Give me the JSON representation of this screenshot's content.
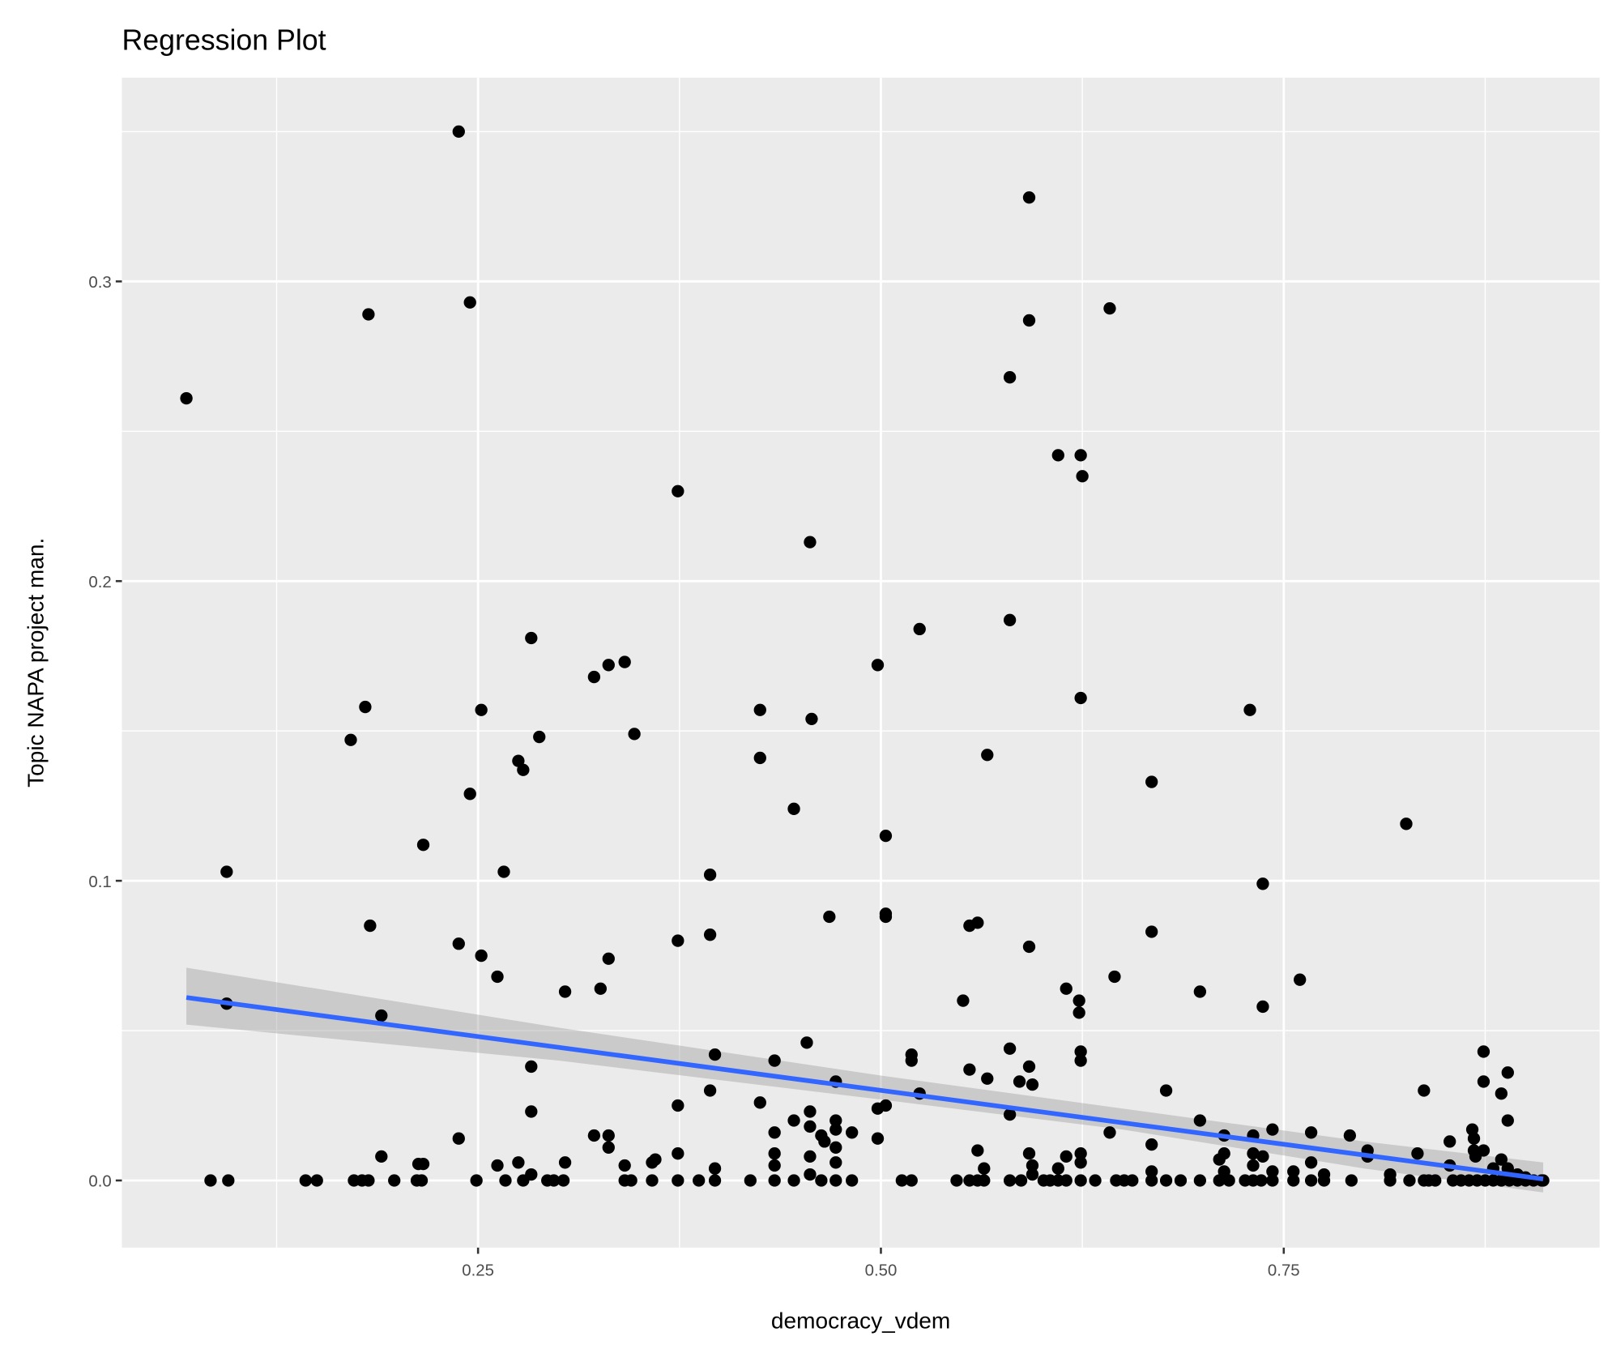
{
  "chart_data": {
    "type": "scatter",
    "title": "Regression Plot",
    "xlabel": "democracy_vdem",
    "ylabel": "Topic NAPA project man.",
    "xlim": [
      0.029,
      0.946
    ],
    "ylim": [
      -0.0224,
      0.368
    ],
    "x_ticks": [
      0.25,
      0.5,
      0.75
    ],
    "x_tick_labels": [
      "0.25",
      "0.50",
      "0.75"
    ],
    "y_ticks": [
      0.0,
      0.1,
      0.2,
      0.3
    ],
    "y_tick_labels": [
      "0.0",
      "0.1",
      "0.2",
      "0.3"
    ],
    "grid": true,
    "legend": "none",
    "colors": {
      "panel": "#ebebeb",
      "grid": "#ffffff",
      "point": "#000000",
      "fit_line": "#3366ff",
      "ci_band": "#999999"
    },
    "regression": {
      "method": "lm",
      "intercept": 0.066,
      "slope": -0.0719,
      "x_range": [
        0.069,
        0.911
      ],
      "ci": [
        {
          "x": 0.069,
          "lo": 0.052,
          "hi": 0.071
        },
        {
          "x": 0.3,
          "lo": 0.04,
          "hi": 0.051
        },
        {
          "x": 0.5,
          "lo": 0.027,
          "hi": 0.035
        },
        {
          "x": 0.65,
          "lo": 0.017,
          "hi": 0.024
        },
        {
          "x": 0.8,
          "lo": 0.004,
          "hi": 0.013
        },
        {
          "x": 0.911,
          "lo": -0.004,
          "hi": 0.006
        }
      ]
    },
    "points": [
      [
        0.069,
        0.261
      ],
      [
        0.084,
        0
      ],
      [
        0.095,
        0
      ],
      [
        0.094,
        0.103
      ],
      [
        0.094,
        0.059
      ],
      [
        0.143,
        0
      ],
      [
        0.15,
        0
      ],
      [
        0.173,
        0
      ],
      [
        0.178,
        0
      ],
      [
        0.182,
        0
      ],
      [
        0.171,
        0.147
      ],
      [
        0.18,
        0.158
      ],
      [
        0.182,
        0.289
      ],
      [
        0.183,
        0.085
      ],
      [
        0.19,
        0.055
      ],
      [
        0.19,
        0.008
      ],
      [
        0.198,
        0
      ],
      [
        0.212,
        0
      ],
      [
        0.215,
        0
      ],
      [
        0.213,
        0.0055
      ],
      [
        0.216,
        0.0055
      ],
      [
        0.216,
        0.112
      ],
      [
        0.238,
        0.35
      ],
      [
        0.238,
        0.079
      ],
      [
        0.238,
        0.014
      ],
      [
        0.245,
        0.293
      ],
      [
        0.245,
        0.129
      ],
      [
        0.249,
        0
      ],
      [
        0.252,
        0.157
      ],
      [
        0.252,
        0.075
      ],
      [
        0.262,
        0.005
      ],
      [
        0.262,
        0.068
      ],
      [
        0.266,
        0.103
      ],
      [
        0.267,
        0
      ],
      [
        0.275,
        0.14
      ],
      [
        0.275,
        0.006
      ],
      [
        0.278,
        0.137
      ],
      [
        0.278,
        0
      ],
      [
        0.283,
        0.181
      ],
      [
        0.283,
        0.038
      ],
      [
        0.283,
        0.023
      ],
      [
        0.283,
        0.002
      ],
      [
        0.288,
        0.148
      ],
      [
        0.293,
        0
      ],
      [
        0.297,
        0
      ],
      [
        0.303,
        0
      ],
      [
        0.304,
        0.063
      ],
      [
        0.304,
        0.006
      ],
      [
        0.322,
        0.168
      ],
      [
        0.322,
        0.015
      ],
      [
        0.326,
        0.064
      ],
      [
        0.331,
        0.172
      ],
      [
        0.331,
        0.074
      ],
      [
        0.331,
        0.015
      ],
      [
        0.331,
        0.011
      ],
      [
        0.341,
        0.173
      ],
      [
        0.341,
        0.005
      ],
      [
        0.341,
        0
      ],
      [
        0.345,
        0
      ],
      [
        0.347,
        0.149
      ],
      [
        0.358,
        0
      ],
      [
        0.358,
        0.006
      ],
      [
        0.36,
        0.007
      ],
      [
        0.374,
        0.23
      ],
      [
        0.374,
        0.08
      ],
      [
        0.374,
        0.025
      ],
      [
        0.374,
        0.009
      ],
      [
        0.374,
        0
      ],
      [
        0.387,
        0
      ],
      [
        0.394,
        0.102
      ],
      [
        0.394,
        0.082
      ],
      [
        0.394,
        0.03
      ],
      [
        0.397,
        0.042
      ],
      [
        0.397,
        0.004
      ],
      [
        0.397,
        0
      ],
      [
        0.419,
        0
      ],
      [
        0.425,
        0.157
      ],
      [
        0.425,
        0.141
      ],
      [
        0.425,
        0.026
      ],
      [
        0.434,
        0.04
      ],
      [
        0.434,
        0.016
      ],
      [
        0.434,
        0.009
      ],
      [
        0.434,
        0.005
      ],
      [
        0.434,
        0
      ],
      [
        0.446,
        0.02
      ],
      [
        0.446,
        0.124
      ],
      [
        0.446,
        0
      ],
      [
        0.456,
        0.213
      ],
      [
        0.457,
        0.154
      ],
      [
        0.454,
        0.046
      ],
      [
        0.456,
        0.023
      ],
      [
        0.456,
        0.018
      ],
      [
        0.456,
        0.008
      ],
      [
        0.456,
        0.002
      ],
      [
        0.463,
        0
      ],
      [
        0.463,
        0.015
      ],
      [
        0.465,
        0.013
      ],
      [
        0.468,
        0.088
      ],
      [
        0.472,
        0
      ],
      [
        0.472,
        0.02
      ],
      [
        0.472,
        0.017
      ],
      [
        0.472,
        0.011
      ],
      [
        0.472,
        0.006
      ],
      [
        0.472,
        0.033
      ],
      [
        0.482,
        0.016
      ],
      [
        0.482,
        0
      ],
      [
        0.498,
        0.172
      ],
      [
        0.498,
        0.024
      ],
      [
        0.498,
        0.014
      ],
      [
        0.503,
        0.115
      ],
      [
        0.503,
        0.089
      ],
      [
        0.503,
        0.088
      ],
      [
        0.503,
        0.025
      ],
      [
        0.513,
        0
      ],
      [
        0.519,
        0
      ],
      [
        0.519,
        0.042
      ],
      [
        0.519,
        0.04
      ],
      [
        0.524,
        0.184
      ],
      [
        0.524,
        0.029
      ],
      [
        0.547,
        0
      ],
      [
        0.555,
        0
      ],
      [
        0.56,
        0
      ],
      [
        0.564,
        0
      ],
      [
        0.551,
        0.06
      ],
      [
        0.555,
        0.037
      ],
      [
        0.555,
        0.085
      ],
      [
        0.56,
        0.086
      ],
      [
        0.56,
        0.01
      ],
      [
        0.564,
        0.004
      ],
      [
        0.566,
        0.142
      ],
      [
        0.566,
        0.034
      ],
      [
        0.58,
        0.268
      ],
      [
        0.58,
        0.187
      ],
      [
        0.58,
        0.044
      ],
      [
        0.58,
        0.022
      ],
      [
        0.58,
        0
      ],
      [
        0.586,
        0.033
      ],
      [
        0.587,
        0
      ],
      [
        0.592,
        0.328
      ],
      [
        0.592,
        0.287
      ],
      [
        0.592,
        0.078
      ],
      [
        0.592,
        0.038
      ],
      [
        0.594,
        0.032
      ],
      [
        0.592,
        0.009
      ],
      [
        0.594,
        0.005
      ],
      [
        0.594,
        0.002
      ],
      [
        0.601,
        0
      ],
      [
        0.605,
        0
      ],
      [
        0.61,
        0
      ],
      [
        0.615,
        0
      ],
      [
        0.61,
        0.242
      ],
      [
        0.615,
        0.064
      ],
      [
        0.615,
        0.008
      ],
      [
        0.61,
        0.004
      ],
      [
        0.624,
        0.242
      ],
      [
        0.625,
        0.235
      ],
      [
        0.624,
        0.161
      ],
      [
        0.623,
        0.06
      ],
      [
        0.623,
        0.056
      ],
      [
        0.624,
        0.043
      ],
      [
        0.624,
        0.04
      ],
      [
        0.624,
        0.009
      ],
      [
        0.624,
        0.006
      ],
      [
        0.624,
        0
      ],
      [
        0.633,
        0
      ],
      [
        0.642,
        0.291
      ],
      [
        0.645,
        0.068
      ],
      [
        0.642,
        0.016
      ],
      [
        0.646,
        0
      ],
      [
        0.651,
        0
      ],
      [
        0.656,
        0
      ],
      [
        0.668,
        0.133
      ],
      [
        0.668,
        0.083
      ],
      [
        0.668,
        0.012
      ],
      [
        0.668,
        0.003
      ],
      [
        0.668,
        0
      ],
      [
        0.677,
        0.03
      ],
      [
        0.677,
        0
      ],
      [
        0.686,
        0
      ],
      [
        0.698,
        0.063
      ],
      [
        0.698,
        0.02
      ],
      [
        0.698,
        0
      ],
      [
        0.71,
        0.007
      ],
      [
        0.71,
        0
      ],
      [
        0.713,
        0.015
      ],
      [
        0.713,
        0.009
      ],
      [
        0.713,
        0.003
      ],
      [
        0.716,
        0
      ],
      [
        0.729,
        0.157
      ],
      [
        0.731,
        0.015
      ],
      [
        0.731,
        0.009
      ],
      [
        0.731,
        0.005
      ],
      [
        0.731,
        0
      ],
      [
        0.726,
        0
      ],
      [
        0.736,
        0
      ],
      [
        0.737,
        0.099
      ],
      [
        0.737,
        0.058
      ],
      [
        0.737,
        0.008
      ],
      [
        0.743,
        0.017
      ],
      [
        0.743,
        0.003
      ],
      [
        0.743,
        0
      ],
      [
        0.756,
        0
      ],
      [
        0.756,
        0.003
      ],
      [
        0.76,
        0.067
      ],
      [
        0.767,
        0.016
      ],
      [
        0.767,
        0.006
      ],
      [
        0.767,
        0
      ],
      [
        0.775,
        0.002
      ],
      [
        0.775,
        0
      ],
      [
        0.791,
        0.015
      ],
      [
        0.792,
        0
      ],
      [
        0.802,
        0.01
      ],
      [
        0.802,
        0.008
      ],
      [
        0.816,
        0.002
      ],
      [
        0.816,
        0
      ],
      [
        0.828,
        0
      ],
      [
        0.826,
        0.119
      ],
      [
        0.833,
        0.009
      ],
      [
        0.837,
        0.03
      ],
      [
        0.837,
        0
      ],
      [
        0.84,
        0
      ],
      [
        0.844,
        0
      ],
      [
        0.853,
        0.013
      ],
      [
        0.853,
        0.005
      ],
      [
        0.855,
        0
      ],
      [
        0.86,
        0
      ],
      [
        0.865,
        0
      ],
      [
        0.867,
        0.017
      ],
      [
        0.868,
        0.014
      ],
      [
        0.868,
        0.01
      ],
      [
        0.869,
        0.008
      ],
      [
        0.87,
        0
      ],
      [
        0.874,
        0.043
      ],
      [
        0.874,
        0.033
      ],
      [
        0.874,
        0.01
      ],
      [
        0.875,
        0
      ],
      [
        0.88,
        0
      ],
      [
        0.88,
        0.004
      ],
      [
        0.885,
        0.029
      ],
      [
        0.885,
        0.007
      ],
      [
        0.885,
        0
      ],
      [
        0.889,
        0.036
      ],
      [
        0.889,
        0.02
      ],
      [
        0.889,
        0.004
      ],
      [
        0.89,
        0
      ],
      [
        0.895,
        0.002
      ],
      [
        0.895,
        0
      ],
      [
        0.9,
        0.001
      ],
      [
        0.9,
        0
      ],
      [
        0.905,
        0
      ],
      [
        0.91,
        0
      ],
      [
        0.911,
        0
      ]
    ]
  }
}
